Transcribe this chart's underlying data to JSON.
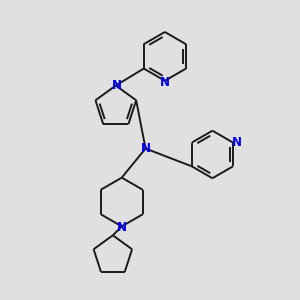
{
  "bg_color": "#e0e0e0",
  "bond_color": "#1a1a1a",
  "nitrogen_color": "#0000ee",
  "lw": 1.4,
  "figsize": [
    3.0,
    3.0
  ],
  "dpi": 100,
  "xlim": [
    0,
    10
  ],
  "ylim": [
    0,
    10
  ]
}
